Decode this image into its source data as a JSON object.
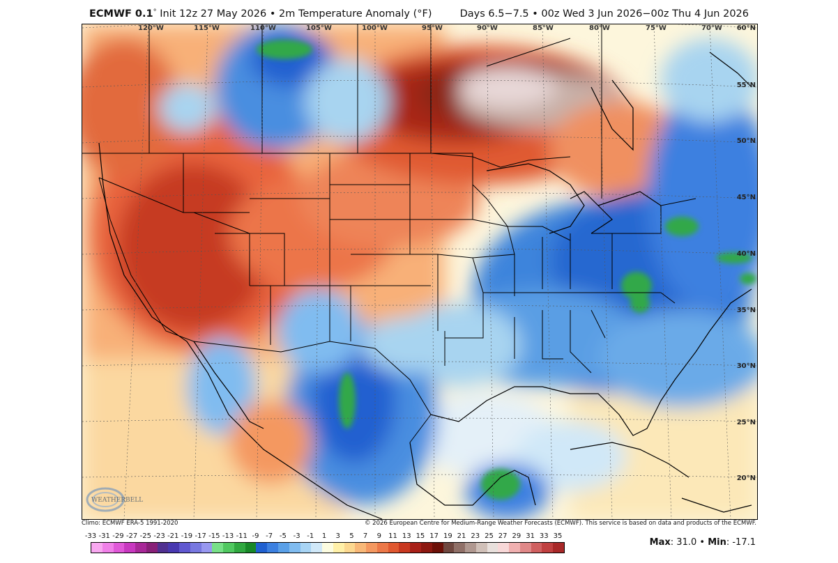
{
  "header": {
    "model": "ECMWF 0.1",
    "degree": "°",
    "init_text": " Init 12z 27 May 2026 • 2m Temperature Anomaly (°F)",
    "valid_text": "Days 6.5−7.5 • 00z Wed 3 Jun 2026−00z Thu 4 Jun 2026"
  },
  "map": {
    "longitude_labels": [
      "120°W",
      "115°W",
      "110°W",
      "105°W",
      "100°W",
      "95°W",
      "90°W",
      "85°W",
      "80°W",
      "75°W",
      "70°W"
    ],
    "latitude_labels": [
      "60°N",
      "55°N",
      "50°N",
      "45°N",
      "40°N",
      "35°N",
      "30°N",
      "25°N",
      "20°N"
    ],
    "colors": {
      "warm_strong": "#c02818",
      "warm_mid": "#e8643c",
      "warm_light": "#f8b078",
      "neutral": "#fbf0d0",
      "cool_light": "#a8d4f0",
      "cool_mid": "#3c8ce0",
      "cool_strong": "#1e5cc8",
      "green": "#30a848",
      "extreme_warm": "#8c2818",
      "extreme_white": "#e8d8d8",
      "ocean_pale": "#fdf6dc"
    }
  },
  "credits": {
    "climo": "Climo: ECMWF ERA-5 1991-2020",
    "copyright": "© 2026 European Centre for Medium-Range Weather Forecasts (ECMWF). This service is based on data and products of the ECMWF.",
    "logo_text": "WEATHERBELL"
  },
  "legend": {
    "tick_labels": [
      "-33",
      "-31",
      "-29",
      "-27",
      "-25",
      "-23",
      "-21",
      "-19",
      "-17",
      "-15",
      "-13",
      "-11",
      "-9",
      "-7",
      "-5",
      "-3",
      "-1",
      "1",
      "3",
      "5",
      "7",
      "9",
      "11",
      "13",
      "15",
      "17",
      "19",
      "21",
      "23",
      "25",
      "27",
      "29",
      "31",
      "33",
      "35"
    ],
    "colors": [
      "#f8a8f0",
      "#f080e8",
      "#e058d8",
      "#c838c0",
      "#a82898",
      "#882078",
      "#503090",
      "#4838b0",
      "#6058d0",
      "#7878e0",
      "#9898f0",
      "#78e088",
      "#50c860",
      "#30a840",
      "#188828",
      "#2060d0",
      "#3c80e0",
      "#5aa0e8",
      "#80bcf0",
      "#a8d4f4",
      "#d0e8f8",
      "#fcfce0",
      "#fff0a8",
      "#fcd890",
      "#f8b878",
      "#f49860",
      "#ec7848",
      "#e05830",
      "#c83820",
      "#a82018",
      "#8c1810",
      "#6c1008",
      "#704840",
      "#907068",
      "#b09890",
      "#d0c0b8",
      "#e8e0dc",
      "#f8d8d8",
      "#f0b0b0",
      "#e08888",
      "#d06060",
      "#c04040",
      "#a82828"
    ]
  },
  "stats": {
    "max_label": "Max",
    "max_value": "31.0",
    "sep": " • ",
    "min_label": "Min",
    "min_value": "-17.1"
  }
}
